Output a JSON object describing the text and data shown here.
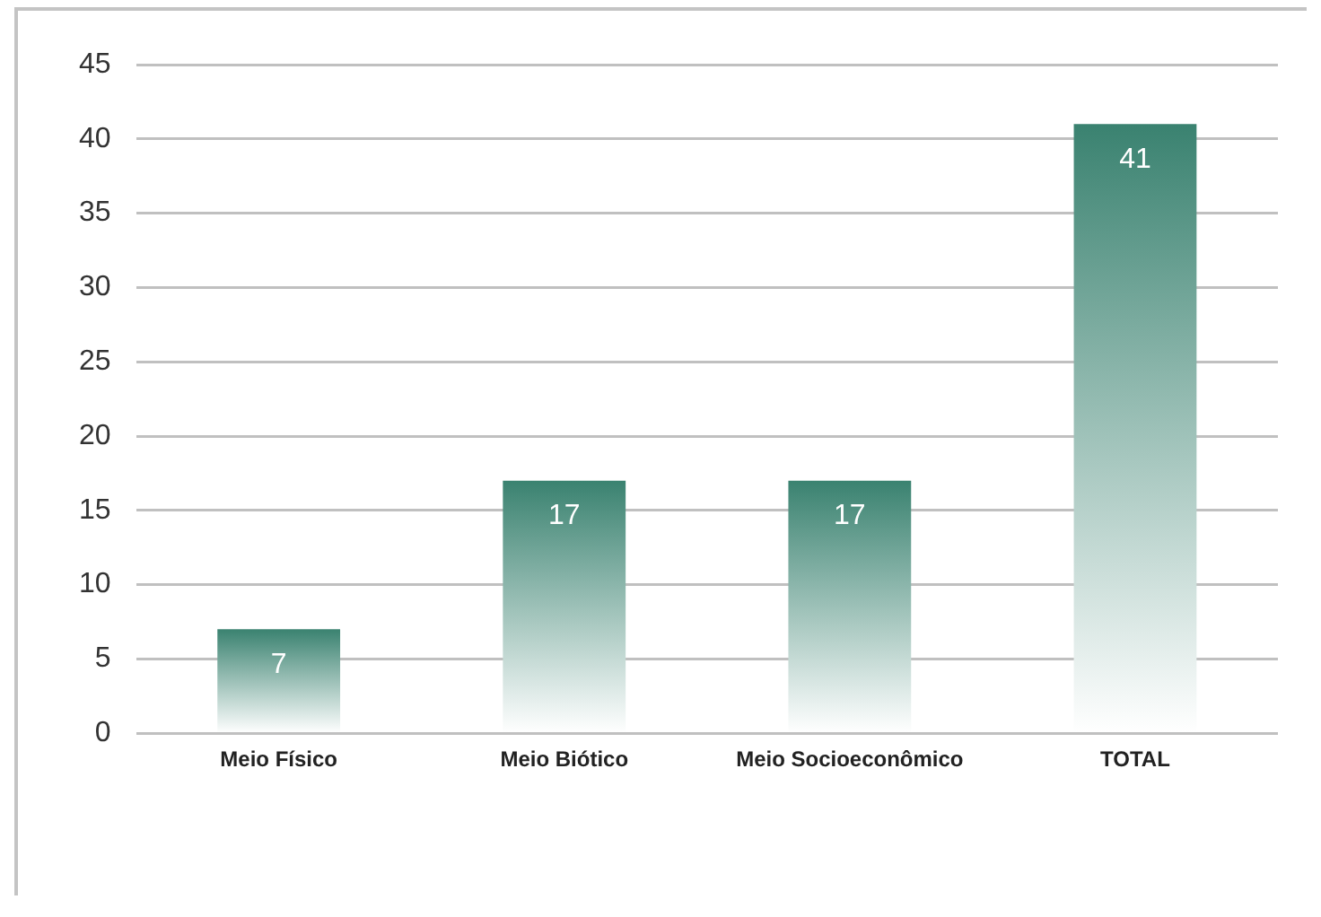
{
  "chart_data": {
    "type": "bar",
    "categories": [
      "Meio Físico",
      "Meio Biótico",
      "Meio Socioeconômico",
      "TOTAL"
    ],
    "values": [
      7,
      17,
      17,
      41
    ],
    "color": "#3a8270",
    "ylim": [
      0,
      45
    ],
    "yticks": [
      0,
      5,
      10,
      15,
      20,
      25,
      30,
      35,
      40,
      45
    ],
    "grid": "y",
    "data_labels": true,
    "legend": false
  }
}
